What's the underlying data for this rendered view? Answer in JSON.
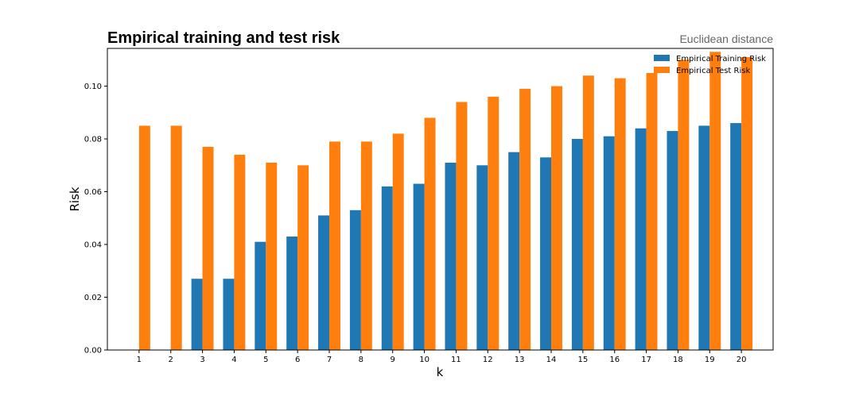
{
  "chart_data": {
    "type": "bar",
    "title": "Empirical training and test risk",
    "subtitle": "Euclidean distance",
    "xlabel": "k",
    "ylabel": "Risk",
    "categories": [
      "1",
      "2",
      "3",
      "4",
      "5",
      "6",
      "7",
      "8",
      "9",
      "10",
      "11",
      "12",
      "13",
      "14",
      "15",
      "16",
      "17",
      "18",
      "19",
      "20"
    ],
    "series": [
      {
        "name": "Empirical Training Risk",
        "color": "#1f77b4",
        "values": [
          0.0,
          0.0,
          0.027,
          0.027,
          0.041,
          0.043,
          0.051,
          0.053,
          0.062,
          0.063,
          0.071,
          0.07,
          0.075,
          0.073,
          0.08,
          0.081,
          0.084,
          0.083,
          0.085,
          0.086
        ]
      },
      {
        "name": "Empirical Test Risk",
        "color": "#ff7f0e",
        "values": [
          0.085,
          0.085,
          0.077,
          0.074,
          0.071,
          0.07,
          0.079,
          0.079,
          0.082,
          0.088,
          0.094,
          0.096,
          0.099,
          0.1,
          0.104,
          0.103,
          0.105,
          0.11,
          0.113,
          0.111
        ]
      }
    ],
    "xlim": [
      0,
      21
    ],
    "ylim": [
      0,
      0.1143
    ],
    "yticks": [
      "0.00",
      "0.02",
      "0.04",
      "0.06",
      "0.08",
      "0.10"
    ],
    "grid": false,
    "legend_position": "top-right"
  }
}
